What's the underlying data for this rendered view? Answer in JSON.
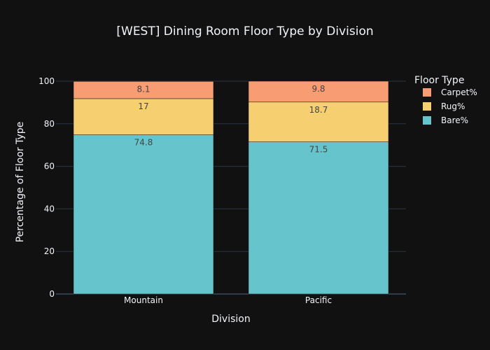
{
  "chart_data": {
    "type": "bar",
    "barmode": "stack",
    "title": "[WEST] Dining Room Floor Type by Division",
    "xlabel": "Division",
    "ylabel": "Percentage of Floor Type",
    "categories": [
      "Mountain",
      "Pacific"
    ],
    "ylim": [
      0,
      100
    ],
    "yticks": [
      0,
      20,
      40,
      60,
      80,
      100
    ],
    "grid": true,
    "legend": {
      "title": "Floor Type",
      "placement": "top-right"
    },
    "series": [
      {
        "name": "Bare%",
        "values": [
          74.8,
          71.5
        ],
        "labels": [
          "74.8",
          "71.5"
        ],
        "color": "#66c5cc"
      },
      {
        "name": "Rug%",
        "values": [
          17,
          18.7
        ],
        "labels": [
          "17",
          "18.7"
        ],
        "color": "#f6cf71"
      },
      {
        "name": "Carpet%",
        "values": [
          8.1,
          9.8
        ],
        "labels": [
          "8.1",
          "9.8"
        ],
        "color": "#f89c74"
      }
    ]
  },
  "colors": {
    "background": "#111111",
    "text": "#f2f5fa",
    "grid": "#283442",
    "data_label": "#444444"
  }
}
